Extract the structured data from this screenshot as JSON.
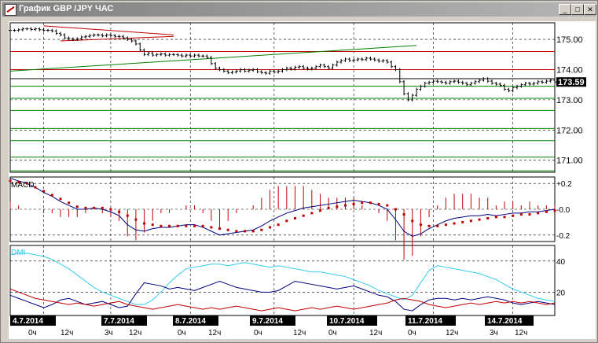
{
  "window": {
    "title": "График GBP /JPY  ЧАС",
    "minimize_glyph": "_",
    "restore_glyph": "□",
    "close_glyph": "✕"
  },
  "icons": {
    "app": "chart-icon"
  },
  "colors": {
    "background": "#ffffff",
    "grid": "#000000",
    "price_bars": "#000000",
    "support_lines": "#008000",
    "resistance_lines": "#c00000",
    "current_price_box": "#000000",
    "macd_line": "#000080",
    "macd_signal": "#c00000",
    "macd_histogram": "#c00000",
    "dmi_adx": "#33ccee",
    "dmi_plus": "#000080",
    "dmi_minus": "#c00000",
    "date_label_bg": "#000000"
  },
  "price_axis": {
    "ticks": [
      "175.00",
      "174.00",
      "173.00",
      "172.00",
      "171.00"
    ],
    "current": "173.59"
  },
  "macd_panel": {
    "label": "MACD",
    "ticks": [
      "+0.2",
      "-0.0",
      "-0.2"
    ]
  },
  "dmi_panel": {
    "label": "DMI",
    "ticks": [
      "40",
      "20"
    ]
  },
  "dates": [
    "4.7.2014",
    "7.7.2014",
    "8.7.2014",
    "9.7.2014",
    "10.7.2014",
    "11.7.2014",
    "14.7.2014"
  ],
  "hour_labels": [
    {
      "text": "0ч"
    },
    {
      "text": "12ч"
    },
    {
      "text": "3ч"
    },
    {
      "text": "12ч"
    },
    {
      "text": "0ч"
    },
    {
      "text": "12ч"
    },
    {
      "text": "0ч"
    },
    {
      "text": "12ч"
    },
    {
      "text": "0ч"
    },
    {
      "text": "12ч"
    },
    {
      "text": "0ч"
    },
    {
      "text": "12ч"
    },
    {
      "text": "3ч"
    },
    {
      "text": "12ч"
    }
  ],
  "chart_data": {
    "type": "line",
    "instrument": "GBP/JPY",
    "timeframe": "hourly",
    "price": {
      "ylim": [
        170.6,
        175.55
      ],
      "x": [
        0,
        5,
        10,
        15,
        20,
        25,
        30,
        35,
        40,
        45,
        50,
        55,
        60,
        65,
        70,
        75,
        80,
        85,
        90,
        95,
        100,
        105,
        110,
        115,
        120,
        125,
        130,
        135,
        140,
        145,
        150,
        155,
        160,
        165,
        170,
        175,
        180,
        185,
        190,
        195,
        200,
        205,
        210,
        215,
        220,
        225,
        230,
        235,
        240,
        245,
        250,
        255,
        260,
        265,
        270,
        275,
        280,
        285,
        290,
        295,
        300,
        305,
        310,
        315,
        320,
        325,
        330,
        335,
        340,
        345,
        350,
        355,
        360,
        365,
        370,
        375,
        380,
        385,
        390,
        395,
        400,
        405,
        410,
        415,
        420,
        425,
        430,
        435,
        440,
        445,
        450,
        455,
        460,
        465,
        470,
        475,
        480,
        485,
        490,
        495,
        500,
        505,
        510,
        515,
        520,
        525,
        530,
        535,
        540,
        545,
        550,
        555,
        560,
        565,
        570,
        575,
        580,
        585,
        590,
        595,
        600,
        605,
        610,
        615,
        620,
        625,
        630,
        635,
        640,
        645,
        650
      ],
      "values": [
        175.3,
        175.3,
        175.32,
        175.35,
        175.35,
        175.33,
        175.35,
        175.32,
        175.3,
        175.3,
        175.28,
        175.2,
        175.15,
        175.05,
        175.02,
        175.0,
        175.02,
        175.08,
        175.1,
        175.13,
        175.15,
        175.15,
        175.12,
        175.15,
        175.13,
        175.1,
        175.1,
        175.05,
        175.0,
        174.95,
        174.85,
        174.65,
        174.5,
        174.55,
        174.48,
        174.5,
        174.52,
        174.48,
        174.5,
        174.5,
        174.48,
        174.45,
        174.48,
        174.45,
        174.48,
        174.45,
        174.45,
        174.4,
        174.2,
        174.05,
        174.0,
        173.95,
        173.9,
        173.92,
        173.95,
        174.0,
        173.95,
        173.98,
        174.0,
        173.93,
        173.9,
        173.88,
        173.95,
        173.92,
        173.95,
        174.0,
        174.05,
        174.02,
        174.08,
        174.1,
        174.05,
        174.02,
        174.05,
        174.1,
        174.15,
        174.1,
        174.05,
        174.15,
        174.25,
        174.3,
        174.35,
        174.3,
        174.32,
        174.35,
        174.33,
        174.38,
        174.35,
        174.32,
        174.28,
        174.3,
        174.25,
        174.1,
        174.0,
        173.6,
        173.2,
        173.0,
        173.15,
        173.35,
        173.45,
        173.55,
        173.58,
        173.62,
        173.6,
        173.58,
        173.55,
        173.6,
        173.62,
        173.58,
        173.55,
        173.5,
        173.55,
        173.6,
        173.65,
        173.7,
        173.62,
        173.55,
        173.52,
        173.48,
        173.35,
        173.3,
        173.4,
        173.45,
        173.5,
        173.55,
        173.52,
        173.55,
        173.6,
        173.58,
        173.62,
        173.65,
        173.59
      ]
    },
    "trendlines": [
      {
        "color": "red",
        "from": [
          40,
          175.45
        ],
        "to": [
          195,
          175.15
        ]
      },
      {
        "color": "red",
        "from": [
          60,
          174.95
        ],
        "to": [
          195,
          175.1
        ]
      },
      {
        "color": "green",
        "from": [
          0,
          173.95
        ],
        "to": [
          485,
          174.8
        ]
      }
    ],
    "horizontal_levels": {
      "red": [
        174.6,
        174.0
      ],
      "black": [
        173.7
      ],
      "green": [
        173.45,
        173.05,
        172.65,
        172.05,
        171.65,
        171.1,
        170.65
      ]
    },
    "macd": {
      "ylim": [
        -0.25,
        0.25
      ],
      "x": [
        0,
        10,
        20,
        30,
        40,
        50,
        60,
        70,
        80,
        90,
        100,
        110,
        120,
        130,
        140,
        150,
        160,
        170,
        180,
        190,
        200,
        210,
        220,
        230,
        240,
        250,
        260,
        270,
        280,
        290,
        300,
        310,
        320,
        330,
        340,
        350,
        360,
        370,
        380,
        390,
        400,
        410,
        420,
        430,
        440,
        450,
        460,
        470,
        480,
        490,
        500,
        510,
        520,
        530,
        540,
        550,
        560,
        570,
        580,
        590,
        600,
        610,
        620,
        630,
        640,
        650
      ],
      "macd": [
        0.24,
        0.22,
        0.2,
        0.17,
        0.13,
        0.1,
        0.06,
        0.03,
        0.0,
        0.0,
        0.01,
        0.0,
        -0.02,
        -0.05,
        -0.12,
        -0.16,
        -0.17,
        -0.15,
        -0.14,
        -0.14,
        -0.13,
        -0.12,
        -0.12,
        -0.14,
        -0.17,
        -0.2,
        -0.19,
        -0.18,
        -0.17,
        -0.16,
        -0.13,
        -0.09,
        -0.06,
        -0.03,
        -0.01,
        0.01,
        0.02,
        0.03,
        0.04,
        0.05,
        0.06,
        0.07,
        0.06,
        0.05,
        0.03,
        0.0,
        -0.08,
        -0.17,
        -0.21,
        -0.19,
        -0.15,
        -0.12,
        -0.09,
        -0.07,
        -0.06,
        -0.05,
        -0.05,
        -0.04,
        -0.05,
        -0.04,
        -0.03,
        -0.03,
        -0.02,
        -0.02,
        -0.01,
        0.0
      ],
      "signal": [
        0.22,
        0.21,
        0.2,
        0.17,
        0.14,
        0.11,
        0.08,
        0.05,
        0.02,
        0.01,
        0.01,
        0.01,
        0.0,
        -0.02,
        -0.05,
        -0.08,
        -0.11,
        -0.12,
        -0.13,
        -0.13,
        -0.13,
        -0.13,
        -0.13,
        -0.13,
        -0.14,
        -0.15,
        -0.16,
        -0.17,
        -0.17,
        -0.17,
        -0.16,
        -0.14,
        -0.12,
        -0.09,
        -0.07,
        -0.05,
        -0.03,
        -0.01,
        0.01,
        0.02,
        0.03,
        0.04,
        0.05,
        0.05,
        0.04,
        0.03,
        0.0,
        -0.04,
        -0.09,
        -0.12,
        -0.13,
        -0.13,
        -0.12,
        -0.11,
        -0.1,
        -0.09,
        -0.08,
        -0.07,
        -0.06,
        -0.06,
        -0.05,
        -0.04,
        -0.04,
        -0.03,
        -0.02,
        -0.01
      ]
    },
    "dmi": {
      "ylim": [
        5,
        50
      ],
      "x": [
        0,
        10,
        20,
        30,
        40,
        50,
        60,
        70,
        80,
        90,
        100,
        110,
        120,
        130,
        140,
        150,
        160,
        170,
        180,
        190,
        200,
        210,
        220,
        230,
        240,
        250,
        260,
        270,
        280,
        290,
        300,
        310,
        320,
        330,
        340,
        350,
        360,
        370,
        380,
        390,
        400,
        410,
        420,
        430,
        440,
        450,
        460,
        470,
        480,
        490,
        500,
        510,
        520,
        530,
        540,
        550,
        560,
        570,
        580,
        590,
        600,
        610,
        620,
        630,
        640,
        650
      ],
      "adx": [
        44,
        45,
        45,
        44,
        43,
        41,
        38,
        35,
        31,
        27,
        23,
        20,
        18,
        16,
        14,
        12,
        12,
        15,
        20,
        26,
        31,
        35,
        36,
        37,
        38,
        38,
        37,
        38,
        39,
        38,
        37,
        36,
        37,
        36,
        35,
        34,
        33,
        33,
        32,
        31,
        30,
        28,
        26,
        24,
        21,
        19,
        17,
        15,
        18,
        26,
        34,
        37,
        36,
        35,
        34,
        33,
        32,
        30,
        28,
        25,
        22,
        20,
        18,
        16,
        15,
        14
      ],
      "plus_di": [
        18,
        16,
        14,
        12,
        10,
        12,
        15,
        16,
        14,
        12,
        13,
        14,
        12,
        10,
        11,
        19,
        26,
        25,
        24,
        22,
        23,
        22,
        21,
        23,
        25,
        27,
        25,
        23,
        22,
        21,
        20,
        20,
        21,
        24,
        27,
        26,
        25,
        24,
        23,
        22,
        23,
        24,
        22,
        20,
        18,
        17,
        14,
        9,
        8,
        12,
        15,
        16,
        16,
        15,
        16,
        15,
        16,
        17,
        16,
        15,
        13,
        12,
        13,
        14,
        13,
        12
      ],
      "minus_di": [
        22,
        20,
        18,
        16,
        15,
        14,
        13,
        12,
        13,
        12,
        11,
        12,
        13,
        14,
        12,
        11,
        10,
        9,
        10,
        11,
        12,
        11,
        10,
        9,
        10,
        9,
        10,
        11,
        10,
        9,
        8,
        9,
        10,
        9,
        8,
        9,
        10,
        9,
        10,
        11,
        10,
        9,
        10,
        11,
        12,
        13,
        15,
        16,
        15,
        14,
        12,
        11,
        10,
        11,
        12,
        13,
        12,
        13,
        14,
        13,
        14,
        13,
        14,
        13,
        12,
        13
      ]
    }
  }
}
